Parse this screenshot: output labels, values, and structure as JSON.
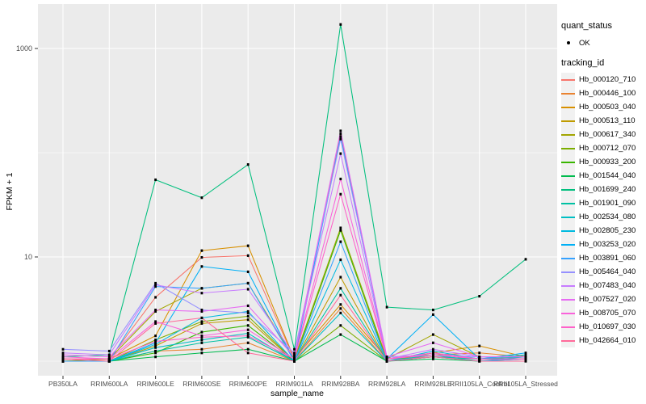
{
  "figure": {
    "background": "#FFFFFF",
    "panel_background": "#EBEBEB",
    "gridline_color": "#FFFFFF",
    "tick_color": "#333333",
    "tick_label_color": "#4D4D4D",
    "point_color": "#000000"
  },
  "axes": {
    "x_title": "sample_name",
    "y_title": "FPKM + 1",
    "y_tick_labels": [
      "1000",
      "10"
    ]
  },
  "legend": {
    "quant_status_title": "quant_status",
    "quant_status_items": [
      "OK"
    ],
    "tracking_id_title": "tracking_id"
  },
  "chart_data": {
    "type": "line",
    "title": "",
    "xlabel": "sample_name",
    "ylabel": "FPKM + 1",
    "y_scale": "log10",
    "y_major_ticks": [
      10,
      1000
    ],
    "y_minor_gridlines": [
      1,
      100
    ],
    "ylim_log": [
      0.86,
      3.43
    ],
    "grid": true,
    "legend_position": "right",
    "marker": "black-point",
    "quant_status": "OK",
    "x": [
      "PB350LA",
      "RRIM600LA",
      "RRIM600LE",
      "RRIM600SE",
      "RRIM600PE",
      "RRIM901LA",
      "RRIM928BA",
      "RRIM928LA",
      "RRIM928LE",
      "RRII105LA_Control",
      "RRII105LA_Stressed"
    ],
    "series": [
      {
        "name": "Hb_000120_710",
        "color": "#F8766D",
        "values": [
          1.05,
          1.05,
          4.1,
          9.9,
          10.3,
          1.05,
          152,
          1.05,
          1.1,
          1.05,
          1.05
        ]
      },
      {
        "name": "Hb_000446_100",
        "color": "#EA8331",
        "values": [
          1.0,
          1.0,
          1.25,
          1.3,
          1.5,
          1.0,
          3.2,
          1.0,
          1.15,
          1.2,
          1.1
        ]
      },
      {
        "name": "Hb_000503_040",
        "color": "#D89000",
        "values": [
          1.0,
          1.05,
          1.75,
          11.5,
          12.8,
          1.05,
          3.5,
          1.05,
          1.2,
          1.4,
          1.1
        ]
      },
      {
        "name": "Hb_000513_110",
        "color": "#C09B00",
        "values": [
          1.0,
          1.0,
          1.4,
          2.3,
          2.5,
          1.0,
          6.4,
          1.0,
          1.1,
          1.05,
          1.05
        ]
      },
      {
        "name": "Hb_000617_340",
        "color": "#A3A500",
        "values": [
          1.0,
          1.05,
          3.0,
          5.0,
          5.6,
          1.05,
          19,
          1.05,
          1.8,
          1.1,
          1.1
        ]
      },
      {
        "name": "Hb_000712_070",
        "color": "#7CAE00",
        "values": [
          1.0,
          1.0,
          1.6,
          2.4,
          2.7,
          1.0,
          2.2,
          1.0,
          1.2,
          1.05,
          1.05
        ]
      },
      {
        "name": "Hb_000933_200",
        "color": "#39B600",
        "values": [
          1.0,
          1.0,
          1.2,
          1.9,
          2.2,
          1.0,
          18,
          1.0,
          1.1,
          1.0,
          1.05
        ]
      },
      {
        "name": "Hb_001544_040",
        "color": "#00BB4E",
        "values": [
          1.0,
          1.0,
          1.1,
          1.2,
          1.3,
          1.0,
          1.8,
          1.0,
          1.05,
          1.0,
          1.0
        ]
      },
      {
        "name": "Hb_001699_240",
        "color": "#00BF7D",
        "values": [
          1.1,
          1.15,
          55,
          37,
          77,
          1.3,
          1700,
          3.3,
          3.1,
          4.2,
          9.5
        ]
      },
      {
        "name": "Hb_001901_090",
        "color": "#00C1A3",
        "values": [
          1.0,
          1.0,
          1.25,
          1.5,
          1.7,
          1.0,
          5.0,
          1.0,
          1.1,
          1.05,
          1.1
        ]
      },
      {
        "name": "Hb_002534_080",
        "color": "#00BFC4",
        "values": [
          1.0,
          1.0,
          1.35,
          1.6,
          1.85,
          1.0,
          2.9,
          1.0,
          1.15,
          1.0,
          1.1
        ]
      },
      {
        "name": "Hb_002805_230",
        "color": "#00BAE0",
        "values": [
          1.0,
          1.0,
          1.45,
          2.6,
          3.0,
          1.0,
          9.4,
          1.0,
          1.25,
          1.05,
          1.15
        ]
      },
      {
        "name": "Hb_003253_020",
        "color": "#00B0F6",
        "values": [
          1.0,
          1.0,
          1.5,
          8.1,
          7.2,
          1.0,
          143,
          1.05,
          2.8,
          1.05,
          1.2
        ]
      },
      {
        "name": "Hb_003891_060",
        "color": "#35A2FF",
        "values": [
          1.0,
          1.0,
          5.2,
          5.0,
          5.6,
          1.0,
          14,
          1.0,
          1.1,
          1.0,
          1.05
        ]
      },
      {
        "name": "Hb_005464_040",
        "color": "#9590FF",
        "values": [
          1.3,
          1.25,
          5.6,
          3.1,
          2.9,
          1.2,
          135,
          1.1,
          1.15,
          1.1,
          1.1
        ]
      },
      {
        "name": "Hb_007483_040",
        "color": "#C77CFF",
        "values": [
          1.2,
          1.15,
          5.4,
          4.5,
          4.9,
          1.15,
          98,
          1.05,
          1.3,
          1.1,
          1.1
        ]
      },
      {
        "name": "Hb_007527_020",
        "color": "#E76BF3",
        "values": [
          1.15,
          1.1,
          3.1,
          3.0,
          3.4,
          1.1,
          162,
          1.1,
          1.5,
          1.1,
          1.1
        ]
      },
      {
        "name": "Hb_008705_070",
        "color": "#FA62DB",
        "values": [
          1.1,
          1.05,
          2.4,
          1.75,
          2.0,
          1.05,
          56,
          1.05,
          1.2,
          1.05,
          1.05
        ]
      },
      {
        "name": "Hb_010697_030",
        "color": "#FF61C9",
        "values": [
          1.05,
          1.05,
          1.55,
          1.7,
          1.75,
          1.05,
          40,
          1.05,
          1.15,
          1.05,
          1.05
        ]
      },
      {
        "name": "Hb_042664_010",
        "color": "#FF6A9A",
        "values": [
          1.05,
          1.0,
          2.3,
          2.6,
          1.2,
          1.0,
          4.3,
          1.0,
          1.1,
          1.0,
          1.0
        ]
      }
    ]
  }
}
